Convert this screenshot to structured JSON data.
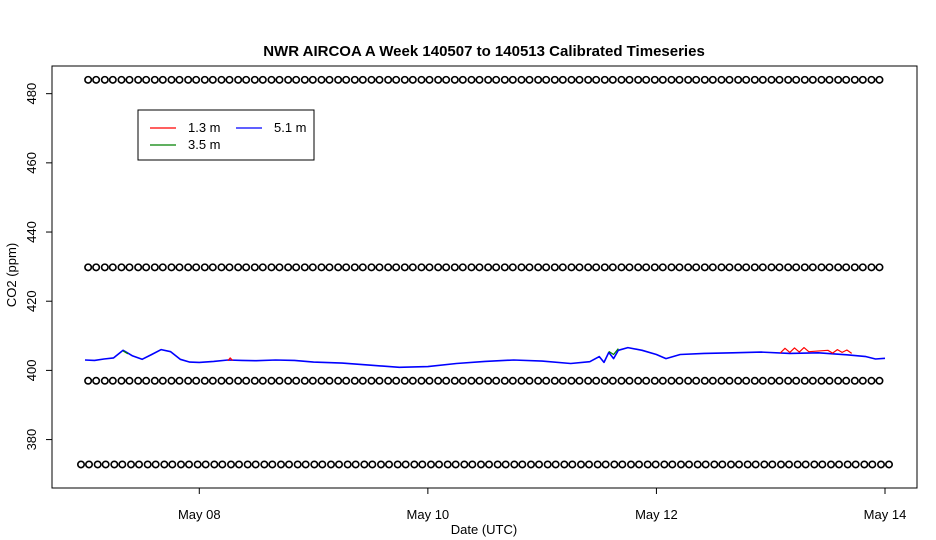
{
  "chart_data": {
    "type": "line",
    "title": "NWR AIRCOA A  Week 140507 to 140513  Calibrated Timeseries",
    "xlabel": "Date (UTC)",
    "ylabel": "CO2 (ppm)",
    "xlim": [
      "2014-05-07T00:00",
      "2014-05-14T00:00"
    ],
    "ylim": [
      366,
      488
    ],
    "x_ticks": [
      {
        "x": "2014-05-08T00:00",
        "label": "May 08"
      },
      {
        "x": "2014-05-10T00:00",
        "label": "May 10"
      },
      {
        "x": "2014-05-12T00:00",
        "label": "May 12"
      },
      {
        "x": "2014-05-14T00:00",
        "label": "May 14"
      }
    ],
    "y_ticks": [
      380,
      400,
      420,
      440,
      460,
      480
    ],
    "grid": false,
    "legend": {
      "position": "top-left",
      "entries": [
        {
          "name": "1.3 m",
          "color": "#ff0000"
        },
        {
          "name": "3.5 m",
          "color": "#008000"
        },
        {
          "name": "5.1 m",
          "color": "#0000ff"
        }
      ]
    },
    "series": [
      {
        "name": "5.1 m",
        "color": "#0000ff",
        "points": [
          [
            "2014-05-07T00:00",
            403.0
          ],
          [
            "2014-05-07T02:00",
            402.9
          ],
          [
            "2014-05-07T04:00",
            403.3
          ],
          [
            "2014-05-07T06:00",
            403.6
          ],
          [
            "2014-05-07T08:00",
            405.8
          ],
          [
            "2014-05-07T10:00",
            404.2
          ],
          [
            "2014-05-07T12:00",
            403.2
          ],
          [
            "2014-05-07T14:00",
            404.6
          ],
          [
            "2014-05-07T16:00",
            406.0
          ],
          [
            "2014-05-07T18:00",
            405.4
          ],
          [
            "2014-05-07T20:00",
            403.2
          ],
          [
            "2014-05-07T22:00",
            402.4
          ],
          [
            "2014-05-08T00:00",
            402.3
          ],
          [
            "2014-05-08T03:00",
            402.6
          ],
          [
            "2014-05-08T06:00",
            403.0
          ],
          [
            "2014-05-08T09:00",
            402.9
          ],
          [
            "2014-05-08T12:00",
            402.8
          ],
          [
            "2014-05-08T16:00",
            403.0
          ],
          [
            "2014-05-08T20:00",
            402.9
          ],
          [
            "2014-05-09T00:00",
            402.4
          ],
          [
            "2014-05-09T06:00",
            402.1
          ],
          [
            "2014-05-09T12:00",
            401.5
          ],
          [
            "2014-05-09T18:00",
            400.9
          ],
          [
            "2014-05-10T00:00",
            401.1
          ],
          [
            "2014-05-10T06:00",
            402.0
          ],
          [
            "2014-05-10T12:00",
            402.6
          ],
          [
            "2014-05-10T18:00",
            403.0
          ],
          [
            "2014-05-11T00:00",
            402.7
          ],
          [
            "2014-05-11T06:00",
            402.0
          ],
          [
            "2014-05-11T10:00",
            402.5
          ],
          [
            "2014-05-11T12:00",
            404.0
          ],
          [
            "2014-05-11T13:00",
            402.3
          ],
          [
            "2014-05-11T14:00",
            405.2
          ],
          [
            "2014-05-11T15:00",
            403.4
          ],
          [
            "2014-05-11T16:00",
            405.8
          ],
          [
            "2014-05-11T18:00",
            406.6
          ],
          [
            "2014-05-11T21:00",
            405.8
          ],
          [
            "2014-05-12T00:00",
            404.6
          ],
          [
            "2014-05-12T02:00",
            403.4
          ],
          [
            "2014-05-12T05:00",
            404.6
          ],
          [
            "2014-05-12T10:00",
            404.9
          ],
          [
            "2014-05-12T16:00",
            405.1
          ],
          [
            "2014-05-12T22:00",
            405.3
          ],
          [
            "2014-05-13T04:00",
            404.9
          ],
          [
            "2014-05-13T10:00",
            405.1
          ],
          [
            "2014-05-13T16:00",
            404.5
          ],
          [
            "2014-05-13T20:00",
            404.0
          ],
          [
            "2014-05-13T22:00",
            403.3
          ],
          [
            "2014-05-14T00:00",
            403.5
          ]
        ]
      },
      {
        "name": "1.3 m",
        "color": "#ff0000",
        "points": [
          [
            "2014-05-08T06:00",
            402.8
          ],
          [
            "2014-05-08T06:30",
            403.6
          ],
          [
            "2014-05-08T07:00",
            402.9
          ],
          [
            "2014-05-13T02:00",
            405.0
          ],
          [
            "2014-05-13T03:00",
            406.4
          ],
          [
            "2014-05-13T04:00",
            405.2
          ],
          [
            "2014-05-13T05:00",
            406.5
          ],
          [
            "2014-05-13T06:00",
            405.3
          ],
          [
            "2014-05-13T07:00",
            406.6
          ],
          [
            "2014-05-13T08:00",
            405.4
          ],
          [
            "2014-05-13T12:00",
            405.8
          ],
          [
            "2014-05-13T13:00",
            405.0
          ],
          [
            "2014-05-13T14:00",
            406.0
          ],
          [
            "2014-05-13T15:00",
            405.2
          ],
          [
            "2014-05-13T16:00",
            405.9
          ],
          [
            "2014-05-13T17:00",
            404.9
          ]
        ]
      },
      {
        "name": "3.5 m",
        "color": "#008000",
        "points": [
          [
            "2014-05-07T08:00",
            405.6
          ],
          [
            "2014-05-07T09:00",
            404.8
          ],
          [
            "2014-05-11T14:00",
            405.5
          ],
          [
            "2014-05-11T15:00",
            404.6
          ],
          [
            "2014-05-11T16:00",
            406.3
          ]
        ]
      },
      {
        "name": "calibration",
        "markers": "circle",
        "rows": [
          {
            "y": 484.0,
            "interval_hours": 3.5,
            "start": "2014-05-07T01:30"
          },
          {
            "y": 429.8,
            "interval_hours": 3.5,
            "start": "2014-05-07T01:30"
          },
          {
            "y": 397.0,
            "interval_hours": 3.5,
            "start": "2014-05-07T01:30"
          },
          {
            "y": 372.8,
            "interval_hours": 3.5,
            "start": "2014-05-07T00:00"
          }
        ]
      }
    ]
  }
}
